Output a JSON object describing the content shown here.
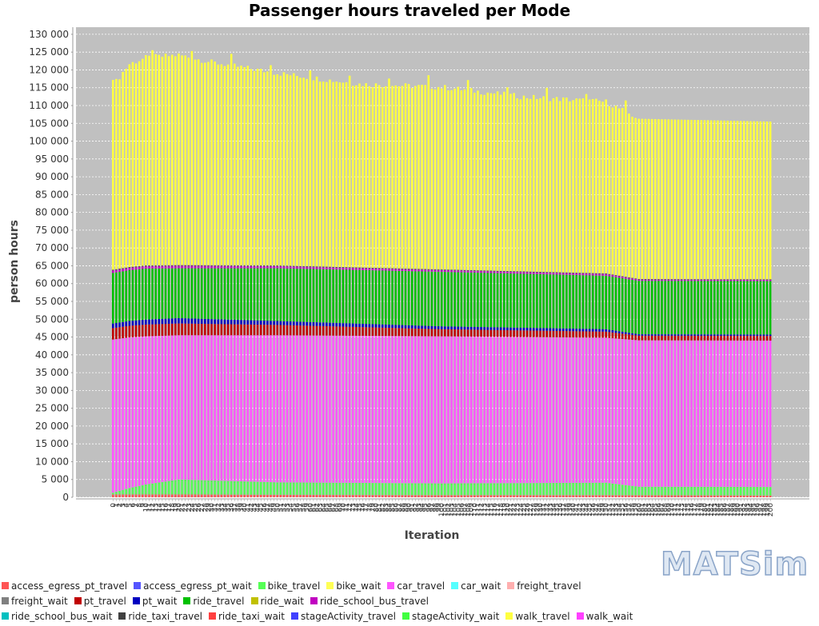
{
  "chart_data": {
    "type": "bar",
    "stacked": true,
    "title": "Passenger hours traveled per Mode",
    "xlabel": "Iteration",
    "ylabel": "person hours",
    "ylim": [
      0,
      132000
    ],
    "yticks": [
      "0",
      "5 000",
      "10 000",
      "15 000",
      "20 000",
      "25 000",
      "30 000",
      "35 000",
      "40 000",
      "45 000",
      "50 000",
      "55 000",
      "60 000",
      "65 000",
      "70 000",
      "75 000",
      "80 000",
      "85 000",
      "90 000",
      "95 000",
      "100 000",
      "105 000",
      "110 000",
      "115 000",
      "120 000",
      "125 000",
      "130 000"
    ],
    "x_range": [
      0,
      200
    ],
    "grid": true,
    "legend_position": "bottom",
    "series": [
      {
        "name": "access_egress_pt_travel",
        "color": "#ff5555",
        "values_at_iteration": {
          "0": 800,
          "10": 800,
          "20": 800,
          "50": 700,
          "100": 600,
          "150": 600,
          "200": 500
        }
      },
      {
        "name": "access_egress_pt_wait",
        "color": "#5555ff",
        "values_at_iteration": {
          "0": 0,
          "200": 0
        }
      },
      {
        "name": "bike_travel",
        "color": "#55ff55",
        "values_at_iteration": {
          "0": 500,
          "5": 1800,
          "10": 2800,
          "20": 4200,
          "50": 3500,
          "100": 3300,
          "150": 3500,
          "160": 2400,
          "200": 2400
        }
      },
      {
        "name": "bike_wait",
        "color": "#ffff55",
        "values_at_iteration": {
          "0": 0,
          "200": 0
        }
      },
      {
        "name": "car_travel",
        "color": "#ff55ff",
        "values_at_iteration": {
          "0": 43000,
          "10": 41600,
          "20": 40500,
          "50": 41300,
          "100": 41300,
          "150": 40700,
          "160": 41100,
          "200": 41100
        }
      },
      {
        "name": "car_wait",
        "color": "#55ffff",
        "values_at_iteration": {
          "0": 0,
          "200": 0
        }
      },
      {
        "name": "freight_travel",
        "color": "#ffafaf",
        "values_at_iteration": {
          "0": 0,
          "200": 0
        }
      },
      {
        "name": "freight_wait",
        "color": "#808080",
        "values_at_iteration": {
          "0": 0,
          "200": 0
        }
      },
      {
        "name": "pt_travel",
        "color": "#c00000",
        "values_at_iteration": {
          "0": 3200,
          "10": 3300,
          "20": 3300,
          "50": 2900,
          "100": 2000,
          "150": 1700,
          "160": 1300,
          "200": 1300
        }
      },
      {
        "name": "pt_wait",
        "color": "#0000c0",
        "values_at_iteration": {
          "0": 1300,
          "10": 1400,
          "20": 1500,
          "50": 1100,
          "100": 800,
          "150": 700,
          "160": 400,
          "200": 400
        }
      },
      {
        "name": "ride_travel",
        "color": "#00c000",
        "values_at_iteration": {
          "0": 14200,
          "10": 14300,
          "20": 14000,
          "50": 14800,
          "100": 15300,
          "150": 15000,
          "160": 15000,
          "200": 15000
        }
      },
      {
        "name": "ride_wait",
        "color": "#c0c000",
        "values_at_iteration": {
          "0": 0,
          "200": 0
        }
      },
      {
        "name": "ride_school_bus_travel",
        "color": "#c000c0",
        "values_at_iteration": {
          "0": 700,
          "10": 700,
          "20": 700,
          "50": 600,
          "100": 500,
          "150": 500,
          "160": 350,
          "200": 350
        }
      },
      {
        "name": "ride_school_bus_wait",
        "color": "#00c0c0",
        "values_at_iteration": {
          "0": 0,
          "200": 0
        }
      },
      {
        "name": "ride_taxi_travel",
        "color": "#404040",
        "values_at_iteration": {
          "0": 200,
          "200": 150
        }
      },
      {
        "name": "ride_taxi_wait",
        "color": "#ff4040",
        "values_at_iteration": {
          "0": 0,
          "200": 0
        }
      },
      {
        "name": "stageActivity_travel",
        "color": "#4040ff",
        "values_at_iteration": {
          "0": 0,
          "200": 0
        }
      },
      {
        "name": "stageActivity_wait",
        "color": "#40ff40",
        "values_at_iteration": {
          "0": 0,
          "200": 0
        }
      },
      {
        "name": "walk_travel",
        "color": "#ffff40",
        "values_at_iteration": {
          "0": 51600,
          "3": 55000,
          "5": 57000,
          "10": 58300,
          "20": 59000,
          "30": 57000,
          "50": 54000,
          "75": 51500,
          "100": 51200,
          "125": 49000,
          "150": 48200,
          "160": 45000,
          "200": 44300
        }
      },
      {
        "name": "walk_wait",
        "color": "#ff40ff",
        "values_at_iteration": {
          "0": 0,
          "200": 0
        }
      }
    ]
  },
  "watermark": "MATSim"
}
